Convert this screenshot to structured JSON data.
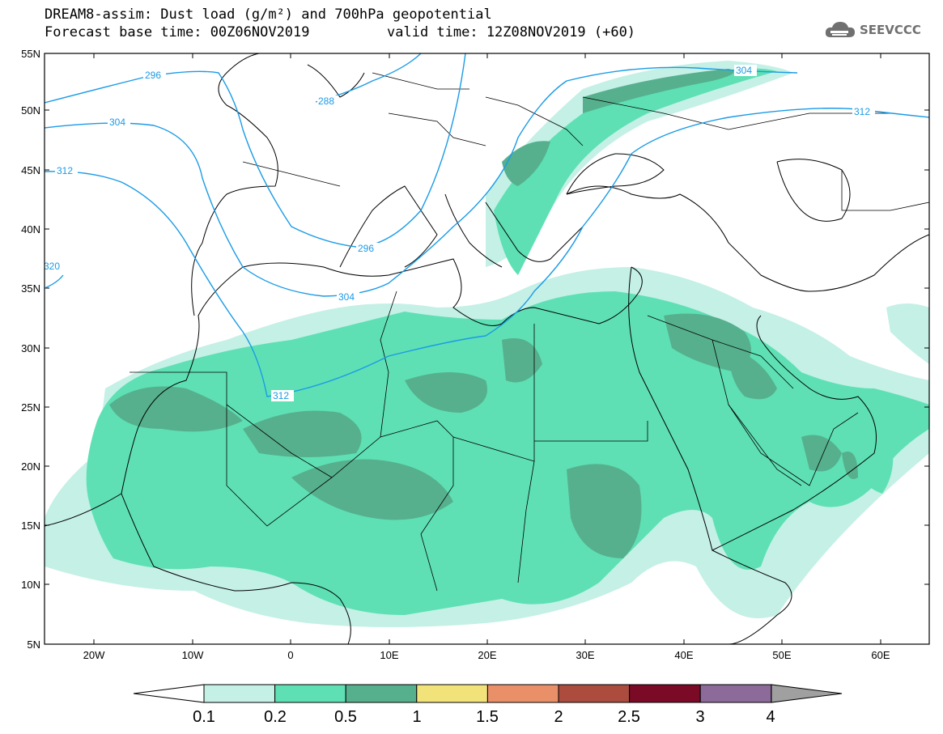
{
  "header": {
    "title_line1": "DREAM8-assim: Dust load (g/m²) and 700hPa geopotential",
    "title_line2": "Forecast base time: 00Z06NOV2019",
    "valid_time": "valid time: 12Z08NOV2019 (+60)",
    "logo_text": "SEEVCCC"
  },
  "axes": {
    "lat_ticks": [
      "55N",
      "50N",
      "45N",
      "40N",
      "35N",
      "30N",
      "25N",
      "20N",
      "15N",
      "10N",
      "5N"
    ],
    "lon_ticks": [
      "20W",
      "10W",
      "0",
      "10E",
      "20E",
      "30E",
      "40E",
      "50E",
      "60E"
    ]
  },
  "contours": {
    "labels": [
      "296",
      "288",
      "304",
      "312",
      "320",
      "296",
      "304",
      "312",
      "304",
      "312"
    ],
    "color": "#1a9be6"
  },
  "colorbar": {
    "levels": [
      "0.1",
      "0.2",
      "0.5",
      "1",
      "1.5",
      "2",
      "2.5",
      "3",
      "4"
    ],
    "colors": [
      "#c4f0e6",
      "#5ee0b4",
      "#56b08e",
      "#f2e27a",
      "#ea9068",
      "#ac4c3e",
      "#7a0a26",
      "#8c6a9a",
      "#a0a0a0"
    ]
  },
  "chart_data": {
    "type": "heatmap",
    "variable": "Dust load (g/m²)",
    "overlay": "700hPa geopotential",
    "region_lat": [
      5,
      55
    ],
    "region_lon": [
      -25,
      65
    ],
    "contour_levels": [
      288,
      296,
      304,
      312,
      320
    ],
    "shading_levels": [
      0.1,
      0.2,
      0.5,
      1,
      1.5,
      2,
      2.5,
      3,
      4
    ]
  }
}
